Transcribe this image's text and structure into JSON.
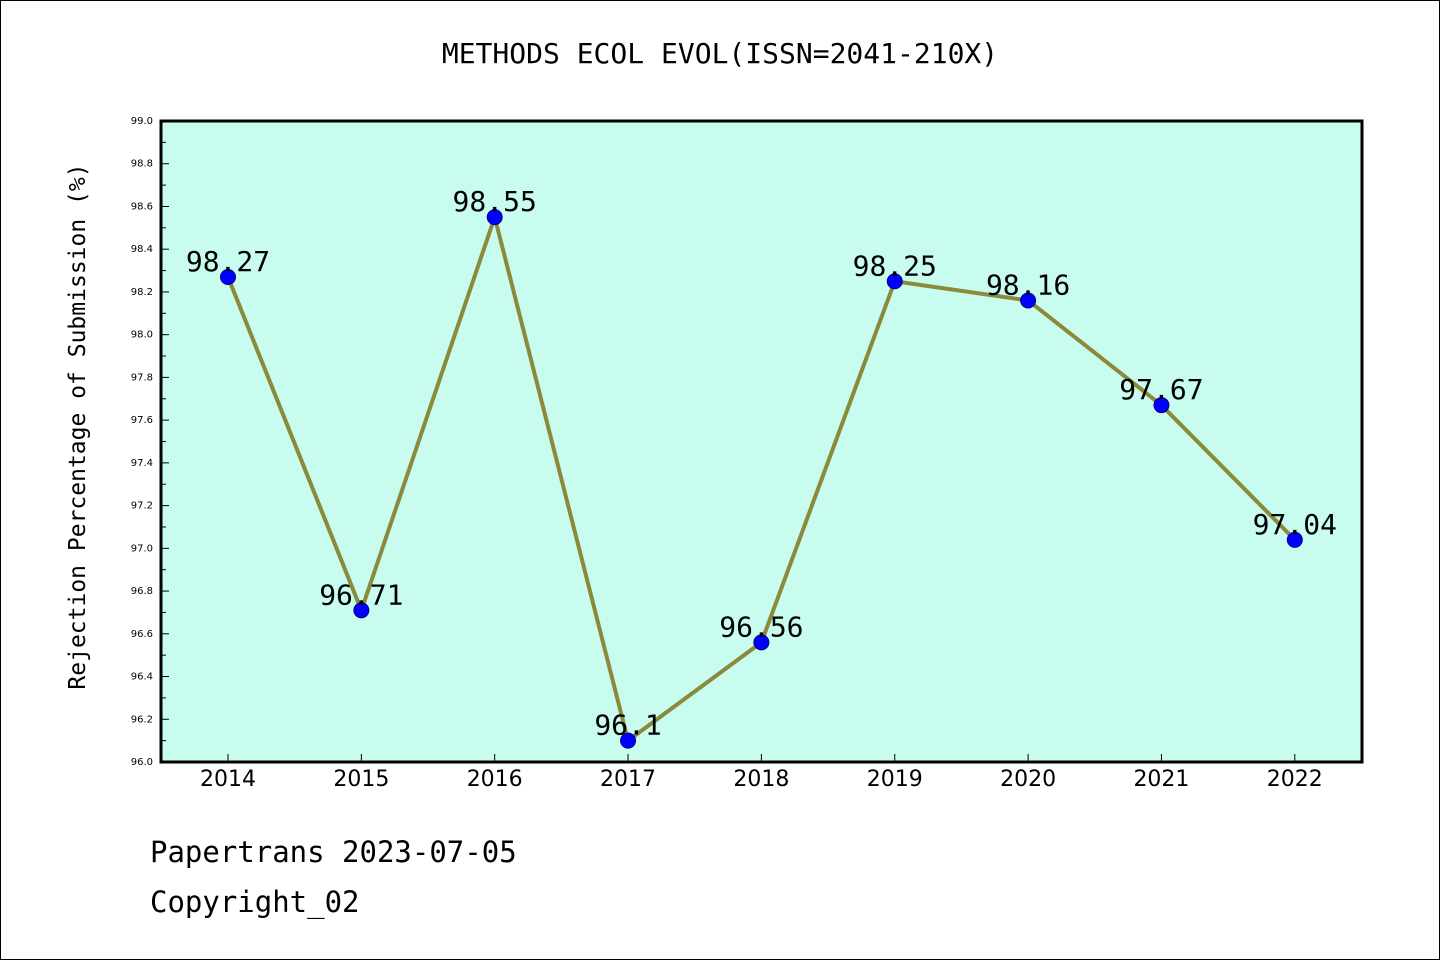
{
  "chart_data": {
    "type": "line",
    "title": "METHODS ECOL EVOL(ISSN=2041-210X)",
    "xlabel": "",
    "ylabel": "Rejection Percentage of Submission (%)",
    "categories": [
      "2014",
      "2015",
      "2016",
      "2017",
      "2018",
      "2019",
      "2020",
      "2021",
      "2022"
    ],
    "series": [
      {
        "values": [
          98.27,
          96.71,
          98.55,
          96.1,
          96.56,
          98.25,
          98.16,
          97.67,
          97.04
        ],
        "data_labels": [
          "98.27",
          "96.71",
          "98.55",
          "96.1",
          "96.56",
          "98.25",
          "98.16",
          "97.67",
          "97.04"
        ]
      }
    ],
    "ylim": [
      96.0,
      99.0
    ],
    "yticks": [
      "96.0",
      "96.2",
      "96.4",
      "96.6",
      "96.8",
      "97.0",
      "97.2",
      "97.4",
      "97.6",
      "97.8",
      "98.0",
      "98.2",
      "98.4",
      "98.6",
      "98.8",
      "99.0"
    ],
    "grid": false,
    "legend": "none",
    "colors": {
      "plot_background": "#c8fcee",
      "line": "#8b8a3c",
      "marker_fill": "#0000ff",
      "marker_stroke": "#00008b",
      "axis": "#000000"
    }
  },
  "footer": {
    "line1": "Papertrans 2023-07-05",
    "line2": "Copyright_02"
  }
}
